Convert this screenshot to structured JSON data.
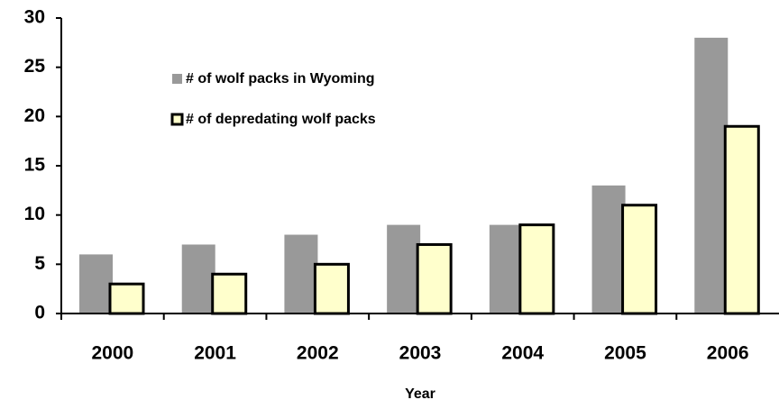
{
  "chart_data": {
    "type": "bar",
    "x_label": "Year",
    "categories": [
      "2000",
      "2001",
      "2002",
      "2003",
      "2004",
      "2005",
      "2006"
    ],
    "series": [
      {
        "name": "# of wolf packs in Wyoming",
        "color": "#999999",
        "values": [
          6,
          7,
          8,
          9,
          9,
          13,
          28
        ]
      },
      {
        "name": "# of depredating wolf packs",
        "color": "#ffffcc",
        "values": [
          3,
          4,
          5,
          7,
          9,
          11,
          19
        ]
      }
    ],
    "ylim": [
      0,
      30
    ],
    "yticks": [
      0,
      5,
      10,
      15,
      20,
      25,
      30
    ],
    "grid": false
  }
}
